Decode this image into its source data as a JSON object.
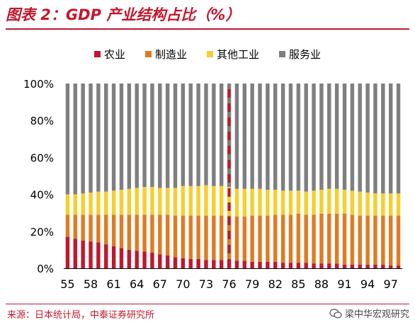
{
  "header": {
    "title": "图表 2：GDP 产业结构占比（%）"
  },
  "footer": {
    "source": "来源：日本统计局，中泰证券研究所",
    "watermark": "梁中华宏观研究"
  },
  "colors": {
    "agriculture": "#c0182e",
    "manufacturing": "#e07b22",
    "other_industry": "#f5cf2c",
    "services": "#7f7f7f",
    "marker": "#c0182e"
  },
  "chart_data": {
    "type": "bar",
    "stacked": true,
    "ylim": [
      0,
      100
    ],
    "y_ticks": [
      "0%",
      "20%",
      "40%",
      "60%",
      "80%",
      "100%"
    ],
    "x_ticks": [
      "55",
      "58",
      "61",
      "64",
      "67",
      "70",
      "73",
      "76",
      "79",
      "82",
      "85",
      "88",
      "91",
      "94",
      "97"
    ],
    "categories": [
      "55",
      "56",
      "57",
      "58",
      "59",
      "60",
      "61",
      "62",
      "63",
      "64",
      "65",
      "66",
      "67",
      "68",
      "69",
      "70",
      "71",
      "72",
      "73",
      "74",
      "75",
      "76",
      "77",
      "78",
      "79",
      "80",
      "81",
      "82",
      "83",
      "84",
      "85",
      "86",
      "87",
      "88",
      "89",
      "90",
      "91",
      "92",
      "93",
      "94",
      "95",
      "96",
      "97",
      "98"
    ],
    "marker_category": "76",
    "grid": false,
    "legend_position": "top",
    "series": [
      {
        "name": "农业",
        "color": "#c0182e",
        "values": [
          17,
          16,
          15,
          14.5,
          14,
          13,
          12,
          11,
          10,
          9.5,
          9,
          8.5,
          7.5,
          7,
          6,
          5.5,
          5,
          5,
          4.5,
          4.5,
          4.5,
          4.5,
          4,
          4,
          3.5,
          3.5,
          3.5,
          3.5,
          3,
          3,
          3,
          3,
          2.5,
          2.5,
          2.5,
          2.5,
          2,
          2,
          2,
          2,
          2,
          2,
          1.5,
          1.5
        ]
      },
      {
        "name": "制造业",
        "color": "#e07b22",
        "values": [
          12,
          13,
          14,
          14.5,
          15,
          16,
          17,
          18,
          19,
          19.5,
          20,
          20.5,
          21.5,
          22,
          22.5,
          23,
          23.5,
          23.5,
          24,
          24,
          24,
          24,
          24,
          24,
          25,
          25,
          25,
          25.5,
          26,
          26,
          26.5,
          26,
          26.5,
          27,
          27,
          27,
          27.5,
          27,
          26.5,
          26.5,
          26.5,
          26.5,
          27,
          27
        ]
      },
      {
        "name": "其他工业",
        "color": "#f5cf2c",
        "values": [
          11,
          11,
          11.5,
          12,
          12.5,
          12.5,
          13,
          13.5,
          14,
          14.5,
          15,
          15,
          14.5,
          14.5,
          15,
          16,
          16,
          16,
          16.5,
          16,
          16,
          15.5,
          15,
          15,
          14.5,
          14.5,
          14,
          13.5,
          13,
          13,
          12.5,
          12.5,
          13,
          13,
          13.5,
          13.5,
          13,
          13,
          13,
          12.5,
          12,
          12,
          12,
          12
        ]
      },
      {
        "name": "服务业",
        "color": "#7f7f7f",
        "values": [
          60,
          60,
          59.5,
          59,
          58.5,
          58.5,
          58,
          57.5,
          57,
          56.5,
          56,
          56,
          56.5,
          56.5,
          56.5,
          55.5,
          55.5,
          55.5,
          55,
          55.5,
          55.5,
          56,
          57,
          57,
          57,
          57,
          57.5,
          57.5,
          58,
          58,
          58,
          58.5,
          58,
          57.5,
          57,
          57,
          57.5,
          58,
          58.5,
          59,
          59.5,
          59.5,
          59.5,
          59.5
        ]
      }
    ]
  }
}
